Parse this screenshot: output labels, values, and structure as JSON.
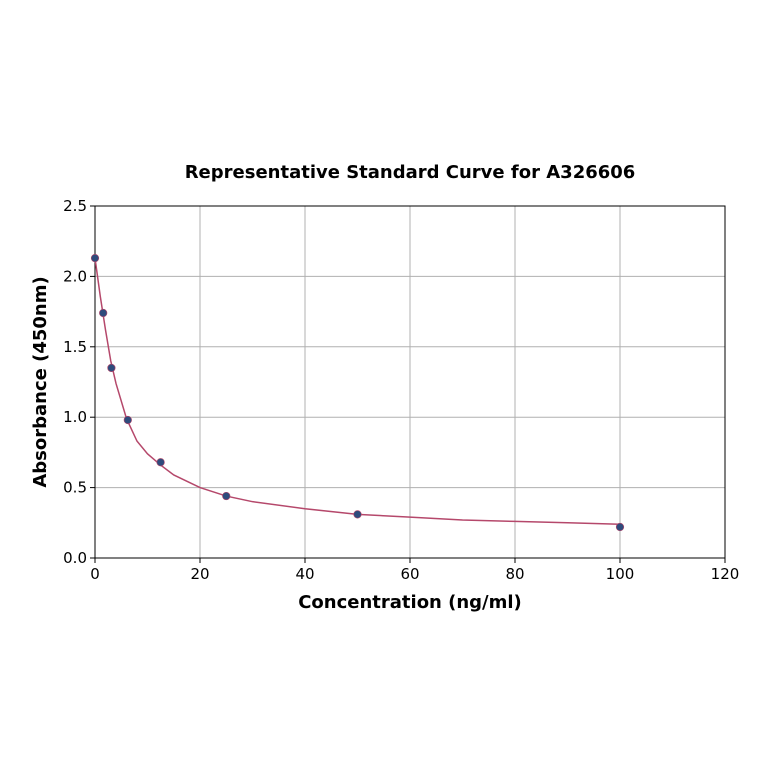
{
  "chart_data": {
    "type": "scatter",
    "title": "Representative Standard Curve for A326606",
    "xlabel": "Concentration (ng/ml)",
    "ylabel": "Absorbance (450nm)",
    "xlim": [
      0,
      120
    ],
    "xticks": [
      0,
      20,
      40,
      60,
      80,
      100,
      120
    ],
    "ylim": [
      0,
      2.5
    ],
    "yticks": [
      {
        "value": 0,
        "label": "0.0"
      },
      0.5,
      {
        "value": 1,
        "label": "1.0"
      },
      1.5,
      {
        "value": 2,
        "label": "2.0"
      },
      2.5
    ],
    "grid": true,
    "series": [
      {
        "mode": "markers",
        "color": "#2f4b7c",
        "x": [
          0,
          1.56,
          3.125,
          6.25,
          12.5,
          25,
          50,
          100
        ],
        "values": [
          2.13,
          1.74,
          1.35,
          0.98,
          0.68,
          0.44,
          0.31,
          0.22
        ]
      },
      {
        "mode": "line",
        "color": "#b5486b",
        "x": [
          0,
          1,
          2,
          3,
          4,
          6,
          8,
          10,
          12.5,
          15,
          20,
          25,
          30,
          40,
          50,
          60,
          70,
          80,
          90,
          100
        ],
        "values": [
          2.13,
          1.86,
          1.62,
          1.4,
          1.24,
          0.99,
          0.83,
          0.74,
          0.66,
          0.59,
          0.5,
          0.44,
          0.4,
          0.35,
          0.31,
          0.29,
          0.27,
          0.26,
          0.25,
          0.24
        ]
      }
    ]
  }
}
